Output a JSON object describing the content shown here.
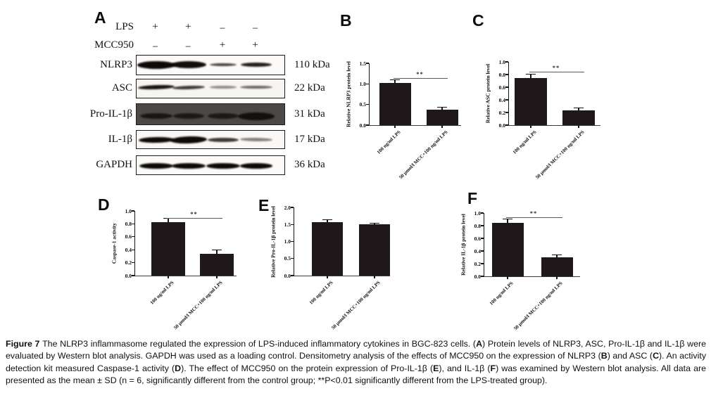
{
  "figure": {
    "caption_segments": [
      {
        "text": "Figure 7 ",
        "bold": true
      },
      {
        "text": "The NLRP3 inflammasome regulated the expression of LPS-induced inflammatory cytokines in BGC-823 cells. (",
        "bold": false
      },
      {
        "text": "A",
        "bold": true
      },
      {
        "text": ") Protein levels of NLRP3, ASC, Pro-IL-1β and IL-1β were evaluated by Western blot analysis. GAPDH was used as a loading control. Densitometry analysis of the effects of MCC950 on the expression of NLRP3 (",
        "bold": false
      },
      {
        "text": "B",
        "bold": true
      },
      {
        "text": ") and ASC (",
        "bold": false
      },
      {
        "text": "C",
        "bold": true
      },
      {
        "text": "). An activity detection kit measured Caspase-1 activity (",
        "bold": false
      },
      {
        "text": "D",
        "bold": true
      },
      {
        "text": "). The effect of MCC950 on the protein expression of Pro-IL-1β (",
        "bold": false
      },
      {
        "text": "E",
        "bold": true
      },
      {
        "text": "), and IL-1β (",
        "bold": false
      },
      {
        "text": "F",
        "bold": true
      },
      {
        "text": ") was examined by Western blot analysis. All data are presented as the mean ± SD (n = 6, significantly different from the control group; **P<0.01 significantly different from the LPS-treated group).",
        "bold": false
      }
    ]
  },
  "panel_a": {
    "label": "A",
    "conditions": [
      {
        "name": "LPS",
        "symbols": [
          "+",
          "+",
          "−",
          "−"
        ]
      },
      {
        "name": "MCC950",
        "symbols": [
          "−",
          "−",
          "+",
          "+"
        ]
      }
    ],
    "blots": [
      {
        "protein": "NLRP3",
        "kda": "110 kDa",
        "box_bg": "#fbfaf8",
        "band_center": 0.45,
        "bands": [
          {
            "x": 0.13,
            "w": 54,
            "h": 11,
            "o": 1.0,
            "r": 0
          },
          {
            "x": 0.35,
            "w": 50,
            "h": 10,
            "o": 0.98,
            "r": 0
          },
          {
            "x": 0.58,
            "w": 38,
            "h": 4,
            "o": 0.75,
            "r": 0
          },
          {
            "x": 0.8,
            "w": 44,
            "h": 6,
            "o": 0.9,
            "r": 0
          }
        ]
      },
      {
        "protein": "ASC",
        "kda": "22 kDa",
        "box_bg": "#f7f5f2",
        "band_center": 0.4,
        "bands": [
          {
            "x": 0.13,
            "w": 52,
            "h": 6,
            "o": 0.95,
            "r": -2
          },
          {
            "x": 0.35,
            "w": 46,
            "h": 5,
            "o": 0.8,
            "r": -2
          },
          {
            "x": 0.58,
            "w": 38,
            "h": 3.5,
            "o": 0.45,
            "r": 0
          },
          {
            "x": 0.8,
            "w": 46,
            "h": 4.5,
            "o": 0.6,
            "r": 0
          }
        ]
      },
      {
        "protein": "Pro-IL-1β",
        "kda": "31 kDa",
        "box_bg": "#4c4845",
        "band_center": 0.55,
        "bands": [
          {
            "x": 0.13,
            "w": 46,
            "h": 8,
            "o": 0.8,
            "r": 0
          },
          {
            "x": 0.35,
            "w": 44,
            "h": 8,
            "o": 0.75,
            "r": 0
          },
          {
            "x": 0.58,
            "w": 44,
            "h": 8,
            "o": 0.75,
            "r": 0
          },
          {
            "x": 0.8,
            "w": 52,
            "h": 11,
            "o": 0.9,
            "r": 0
          }
        ]
      },
      {
        "protein": "IL-1β",
        "kda": "17 kDa",
        "box_bg": "#faf8f6",
        "band_center": 0.48,
        "bands": [
          {
            "x": 0.13,
            "w": 50,
            "h": 8,
            "o": 1.0,
            "r": -1
          },
          {
            "x": 0.35,
            "w": 52,
            "h": 10,
            "o": 1.0,
            "r": -2
          },
          {
            "x": 0.58,
            "w": 44,
            "h": 6.5,
            "o": 0.8,
            "r": 0
          },
          {
            "x": 0.8,
            "w": 46,
            "h": 5,
            "o": 0.5,
            "r": 1
          }
        ]
      },
      {
        "protein": "GAPDH",
        "kda": "36 kDa",
        "box_bg": "#fbfaf8",
        "band_center": 0.5,
        "bands": [
          {
            "x": 0.13,
            "w": 48,
            "h": 8,
            "o": 1.0,
            "r": 0
          },
          {
            "x": 0.35,
            "w": 48,
            "h": 8,
            "o": 1.0,
            "r": 0
          },
          {
            "x": 0.58,
            "w": 48,
            "h": 8,
            "o": 1.0,
            "r": 0
          },
          {
            "x": 0.8,
            "w": 46,
            "h": 7.5,
            "o": 1.0,
            "r": 0
          }
        ]
      }
    ]
  },
  "chart_data": [
    {
      "panel": "B",
      "type": "bar",
      "categories": [
        "100 ng/ml LPS",
        "50 μmol/l MCC+100 ng/ml LPS"
      ],
      "values": [
        1.02,
        0.38
      ],
      "errors": [
        0.07,
        0.04
      ],
      "title": "",
      "xlabel": "",
      "ylabel": "Relative NLRP3 protein level",
      "ylim": [
        0,
        1.5
      ],
      "yticks": [
        "0.0",
        "0.5",
        "1.0",
        "1.5"
      ],
      "grid": false,
      "significance": {
        "label": "**",
        "y": 1.14
      }
    },
    {
      "panel": "C",
      "type": "bar",
      "categories": [
        "100 ng/ml LPS",
        "50 μmol/l MCC+100 ng/ml LPS"
      ],
      "values": [
        0.75,
        0.23
      ],
      "errors": [
        0.05,
        0.04
      ],
      "title": "",
      "xlabel": "",
      "ylabel": "Relative ASC protein level",
      "ylim": [
        0,
        1.0
      ],
      "yticks": [
        "0.0",
        "0.2",
        "0.4",
        "0.6",
        "0.8",
        "1.0"
      ],
      "grid": false,
      "significance": {
        "label": "**",
        "y": 0.84
      }
    },
    {
      "panel": "D",
      "type": "bar",
      "categories": [
        "100 ng/ml LPS",
        "50 μmol/l MCC+100 ng/ml LPS"
      ],
      "values": [
        0.83,
        0.34
      ],
      "errors": [
        0.05,
        0.05
      ],
      "title": "",
      "xlabel": "",
      "ylabel": "Caspase-1 activity",
      "ylim": [
        0,
        1.0
      ],
      "yticks": [
        "0.0",
        "0.2",
        "0.4",
        "0.6",
        "0.8",
        "1.0"
      ],
      "grid": false,
      "significance": {
        "label": "**",
        "y": 0.89
      }
    },
    {
      "panel": "E",
      "type": "bar",
      "categories": [
        "100 ng/ml LPS",
        "50 μmol/l MCC+100 ng/ml LPS"
      ],
      "values": [
        1.57,
        1.5
      ],
      "errors": [
        0.05,
        0.03
      ],
      "title": "",
      "xlabel": "",
      "ylabel": "Relative Pro-IL-1β  protein level",
      "ylim": [
        0,
        2.0
      ],
      "yticks": [
        "0.0",
        "0.5",
        "1.0",
        "1.5",
        "2.0"
      ],
      "grid": false,
      "significance": null
    },
    {
      "panel": "F",
      "type": "bar",
      "categories": [
        "100 ng/ml LPS",
        "50 μmol/l MCC+100 ng/ml LPS"
      ],
      "values": [
        0.85,
        0.3
      ],
      "errors": [
        0.05,
        0.03
      ],
      "title": "",
      "xlabel": "",
      "ylabel": "Relative IL-1β  protein level",
      "ylim": [
        0,
        1.0
      ],
      "yticks": [
        "0.0",
        "0.2",
        "0.4",
        "0.6",
        "0.8",
        "1.0"
      ],
      "grid": false,
      "significance": {
        "label": "**",
        "y": 0.93
      }
    }
  ],
  "colors": {
    "bar": "#1f181a",
    "axis": "#151515",
    "band": "#0c0909",
    "sig_line": "#5a5a5a",
    "background": "#ffffff"
  }
}
